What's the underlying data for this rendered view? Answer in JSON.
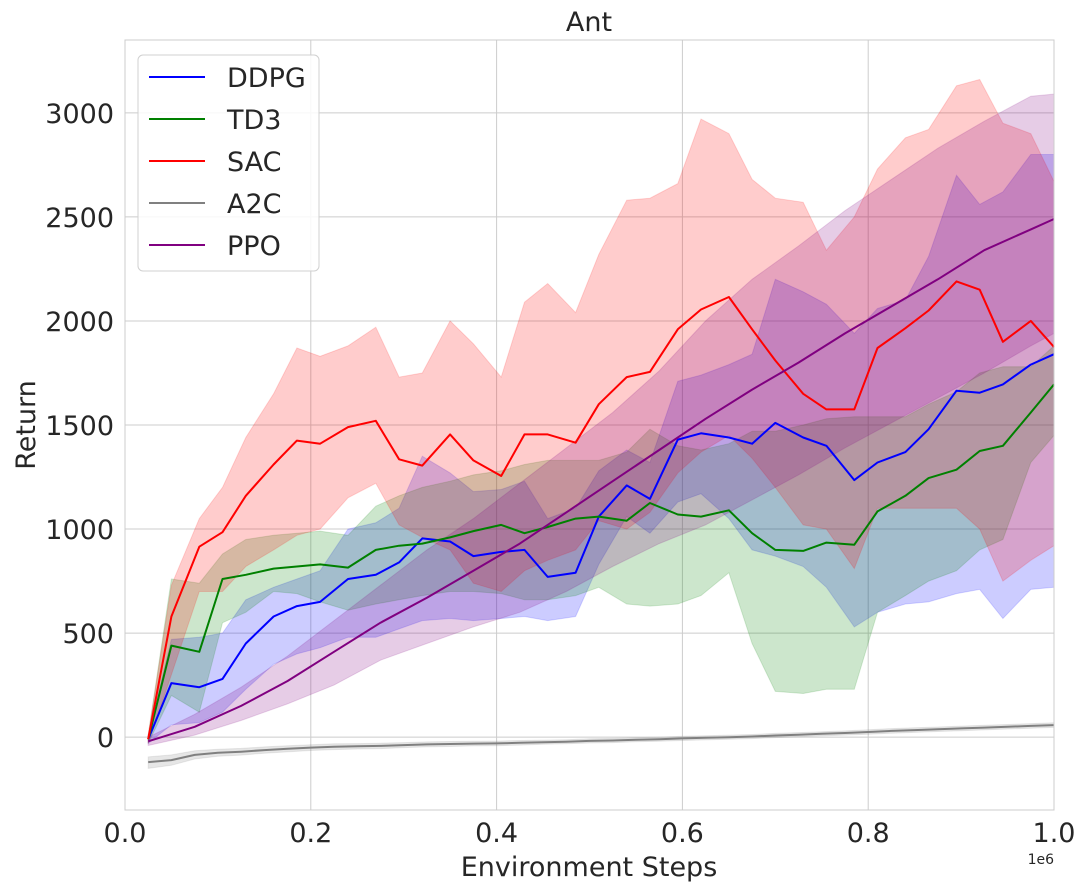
{
  "chart_data": {
    "type": "line",
    "title": "Ant",
    "xlabel": "Environment Steps",
    "ylabel": "Return",
    "x_offset_label": "1e6",
    "xlim": [
      0.0,
      1.0
    ],
    "ylim": [
      -350,
      3350
    ],
    "xticks": [
      0.0,
      0.2,
      0.4,
      0.6,
      0.8,
      1.0
    ],
    "xtick_labels": [
      "0.0",
      "0.2",
      "0.4",
      "0.6",
      "0.8",
      "1.0"
    ],
    "yticks": [
      0,
      500,
      1000,
      1500,
      2000,
      2500,
      3000
    ],
    "ytick_labels": [
      "0",
      "500",
      "1000",
      "1500",
      "2000",
      "2500",
      "3000"
    ],
    "grid": true,
    "legend_position": "top-left",
    "series": [
      {
        "name": "DDPG",
        "color": "#0000ff",
        "x": [
          0.025,
          0.05,
          0.08,
          0.105,
          0.13,
          0.16,
          0.185,
          0.21,
          0.24,
          0.27,
          0.295,
          0.32,
          0.35,
          0.375,
          0.405,
          0.43,
          0.455,
          0.485,
          0.51,
          0.54,
          0.565,
          0.595,
          0.62,
          0.65,
          0.675,
          0.7,
          0.73,
          0.755,
          0.785,
          0.81,
          0.84,
          0.865,
          0.895,
          0.92,
          0.945,
          0.975,
          1.0
        ],
        "y": [
          -10,
          260,
          240,
          280,
          450,
          580,
          630,
          650,
          760,
          780,
          840,
          955,
          940,
          870,
          890,
          900,
          770,
          790,
          1060,
          1210,
          1145,
          1430,
          1460,
          1440,
          1410,
          1510,
          1440,
          1400,
          1235,
          1320,
          1370,
          1480,
          1665,
          1655,
          1695,
          1790,
          1840
        ],
        "lower": [
          -30,
          60,
          70,
          120,
          230,
          350,
          400,
          430,
          480,
          480,
          520,
          560,
          570,
          560,
          570,
          580,
          560,
          580,
          830,
          1060,
          980,
          1130,
          1170,
          1050,
          900,
          870,
          820,
          720,
          530,
          600,
          640,
          650,
          690,
          710,
          570,
          710,
          720
        ],
        "upper": [
          10,
          470,
          480,
          500,
          660,
          720,
          760,
          800,
          1000,
          1030,
          1100,
          1350,
          1270,
          1180,
          1190,
          1230,
          1050,
          1100,
          1280,
          1380,
          1320,
          1710,
          1740,
          1790,
          1840,
          2200,
          2140,
          2080,
          1940,
          2060,
          2100,
          2310,
          2700,
          2560,
          2620,
          2800,
          2800
        ]
      },
      {
        "name": "TD3",
        "color": "#008000",
        "x": [
          0.025,
          0.05,
          0.08,
          0.105,
          0.13,
          0.16,
          0.185,
          0.21,
          0.24,
          0.27,
          0.295,
          0.32,
          0.35,
          0.375,
          0.405,
          0.43,
          0.455,
          0.485,
          0.51,
          0.54,
          0.565,
          0.595,
          0.62,
          0.65,
          0.675,
          0.7,
          0.73,
          0.755,
          0.785,
          0.81,
          0.84,
          0.865,
          0.895,
          0.92,
          0.945,
          0.975,
          1.0
        ],
        "y": [
          -10,
          440,
          410,
          760,
          780,
          810,
          820,
          830,
          815,
          900,
          920,
          930,
          960,
          990,
          1020,
          980,
          1010,
          1050,
          1060,
          1040,
          1125,
          1070,
          1060,
          1090,
          980,
          900,
          895,
          935,
          925,
          1085,
          1160,
          1245,
          1285,
          1375,
          1400,
          1560,
          1695
        ],
        "lower": [
          -30,
          200,
          120,
          550,
          600,
          700,
          690,
          650,
          610,
          640,
          660,
          680,
          700,
          700,
          690,
          660,
          660,
          680,
          720,
          640,
          630,
          640,
          680,
          790,
          450,
          220,
          210,
          230,
          230,
          600,
          680,
          750,
          800,
          900,
          950,
          1320,
          1450
        ],
        "upper": [
          10,
          760,
          740,
          880,
          950,
          970,
          980,
          990,
          970,
          1110,
          1160,
          1200,
          1230,
          1260,
          1280,
          1310,
          1330,
          1330,
          1330,
          1370,
          1480,
          1400,
          1380,
          1410,
          1470,
          1470,
          1500,
          1530,
          1540,
          1540,
          1540,
          1600,
          1660,
          1750,
          1780,
          1780,
          1880
        ]
      },
      {
        "name": "SAC",
        "color": "#ff0000",
        "x": [
          0.025,
          0.05,
          0.08,
          0.105,
          0.13,
          0.16,
          0.185,
          0.21,
          0.24,
          0.27,
          0.295,
          0.32,
          0.35,
          0.375,
          0.405,
          0.43,
          0.455,
          0.485,
          0.51,
          0.54,
          0.565,
          0.595,
          0.62,
          0.65,
          0.675,
          0.7,
          0.73,
          0.755,
          0.785,
          0.81,
          0.84,
          0.865,
          0.895,
          0.92,
          0.945,
          0.975,
          1.0
        ],
        "y": [
          -10,
          580,
          915,
          985,
          1160,
          1310,
          1425,
          1410,
          1490,
          1520,
          1335,
          1305,
          1455,
          1330,
          1255,
          1455,
          1455,
          1415,
          1600,
          1730,
          1755,
          1960,
          2055,
          2115,
          1960,
          1810,
          1650,
          1575,
          1575,
          1870,
          1965,
          2050,
          2190,
          2150,
          1900,
          2000,
          1875
        ],
        "lower": [
          -30,
          300,
          700,
          700,
          820,
          900,
          970,
          1000,
          1150,
          1220,
          1020,
          960,
          900,
          740,
          700,
          800,
          850,
          900,
          1040,
          1000,
          1080,
          1270,
          1370,
          1450,
          1340,
          1200,
          1020,
          1000,
          810,
          1100,
          1100,
          1100,
          1100,
          1000,
          750,
          850,
          920
        ],
        "upper": [
          10,
          730,
          1050,
          1200,
          1440,
          1650,
          1870,
          1830,
          1880,
          1970,
          1730,
          1750,
          2000,
          1890,
          1730,
          2090,
          2180,
          2040,
          2320,
          2580,
          2590,
          2660,
          2970,
          2900,
          2680,
          2590,
          2570,
          2340,
          2500,
          2730,
          2880,
          2920,
          3130,
          3160,
          2950,
          2900,
          2670
        ]
      },
      {
        "name": "A2C",
        "color": "#808080",
        "x": [
          0.025,
          0.05,
          0.075,
          0.1,
          0.125,
          0.15,
          0.175,
          0.2,
          0.225,
          0.25,
          0.275,
          0.3,
          0.325,
          0.35,
          0.375,
          0.4,
          0.425,
          0.45,
          0.475,
          0.5,
          0.525,
          0.55,
          0.575,
          0.6,
          0.625,
          0.65,
          0.675,
          0.7,
          0.725,
          0.75,
          0.775,
          0.8,
          0.825,
          0.85,
          0.875,
          0.9,
          0.925,
          0.95,
          0.975,
          1.0
        ],
        "y": [
          -120,
          -110,
          -85,
          -75,
          -70,
          -62,
          -56,
          -50,
          -46,
          -44,
          -42,
          -38,
          -35,
          -33,
          -31,
          -30,
          -27,
          -24,
          -22,
          -18,
          -16,
          -12,
          -10,
          -6,
          -3,
          0,
          3,
          8,
          12,
          16,
          20,
          25,
          30,
          34,
          38,
          42,
          46,
          50,
          54,
          58
        ],
        "lower": [
          -150,
          -135,
          -105,
          -92,
          -86,
          -77,
          -71,
          -64,
          -60,
          -57,
          -55,
          -50,
          -47,
          -45,
          -42,
          -41,
          -38,
          -34,
          -32,
          -28,
          -26,
          -22,
          -20,
          -16,
          -13,
          -10,
          -7,
          -2,
          2,
          6,
          10,
          14,
          19,
          23,
          27,
          31,
          35,
          39,
          43,
          47
        ],
        "upper": [
          -95,
          -85,
          -65,
          -58,
          -54,
          -47,
          -41,
          -36,
          -32,
          -31,
          -29,
          -26,
          -23,
          -21,
          -20,
          -19,
          -16,
          -14,
          -12,
          -8,
          -6,
          -2,
          0,
          4,
          7,
          10,
          13,
          18,
          22,
          26,
          30,
          36,
          41,
          45,
          49,
          53,
          57,
          61,
          65,
          69
        ]
      },
      {
        "name": "PPO",
        "color": "#800080",
        "x": [
          0.025,
          0.075,
          0.125,
          0.175,
          0.225,
          0.275,
          0.325,
          0.375,
          0.425,
          0.475,
          0.525,
          0.575,
          0.625,
          0.675,
          0.725,
          0.775,
          0.825,
          0.875,
          0.925,
          0.975,
          1.0
        ],
        "y": [
          -20,
          50,
          150,
          270,
          410,
          550,
          670,
          800,
          930,
          1080,
          1230,
          1380,
          1530,
          1670,
          1800,
          1940,
          2070,
          2200,
          2340,
          2440,
          2490
        ],
        "lower": [
          -40,
          10,
          80,
          160,
          250,
          370,
          450,
          530,
          600,
          700,
          820,
          930,
          1020,
          1140,
          1260,
          1390,
          1510,
          1630,
          1750,
          1880,
          1940
        ],
        "upper": [
          0,
          110,
          240,
          390,
          560,
          730,
          900,
          1050,
          1220,
          1390,
          1560,
          1760,
          2000,
          2200,
          2360,
          2530,
          2680,
          2830,
          2960,
          3080,
          3090
        ]
      }
    ]
  }
}
